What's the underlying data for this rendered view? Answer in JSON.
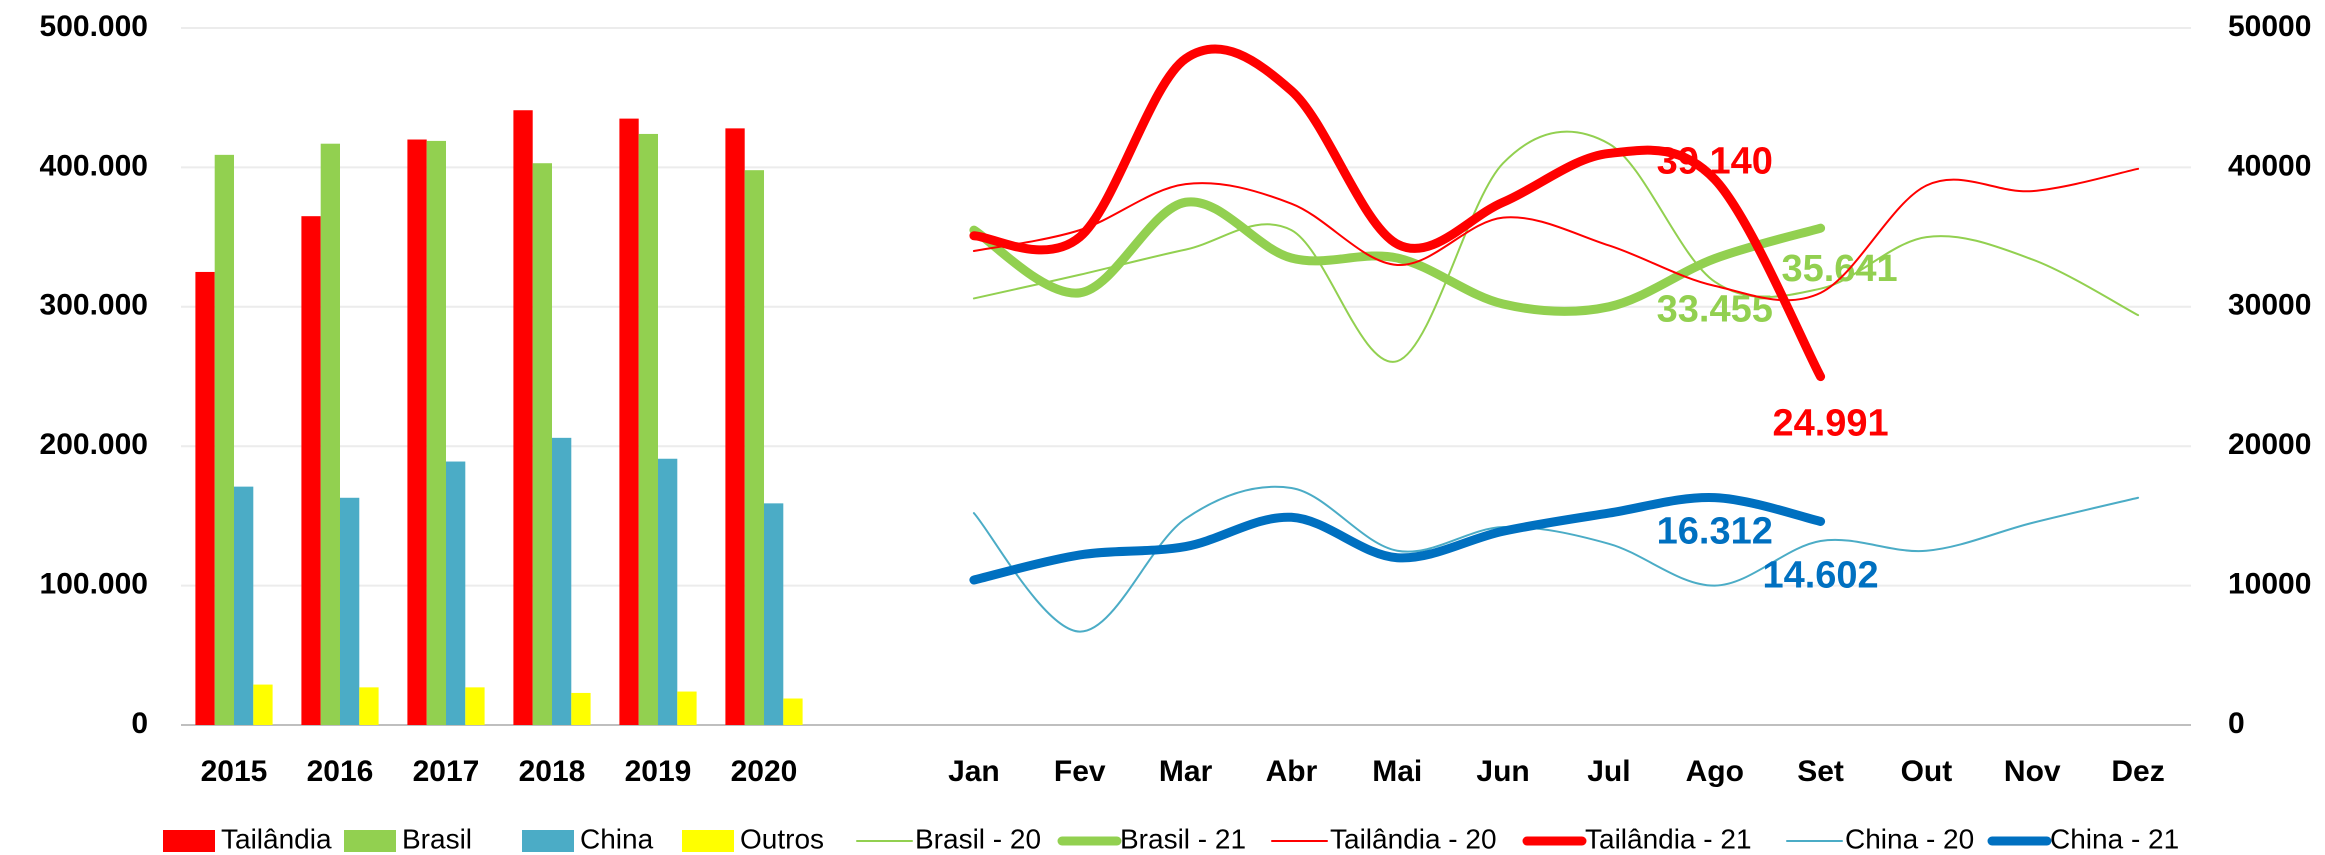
{
  "chart_data": [
    {
      "type": "bar",
      "categories": [
        "2015",
        "2016",
        "2017",
        "2018",
        "2019",
        "2020"
      ],
      "series": [
        {
          "name": "Tailândia",
          "color": "#ff0000",
          "values": [
            325000,
            365000,
            420000,
            441000,
            435000,
            428000
          ]
        },
        {
          "name": "Brasil",
          "color": "#92d050",
          "values": [
            409000,
            417000,
            419000,
            403000,
            424000,
            398000
          ]
        },
        {
          "name": "China",
          "color": "#4bacc6",
          "values": [
            171000,
            163000,
            189000,
            206000,
            191000,
            159000
          ]
        },
        {
          "name": "Outros",
          "color": "#ffff00",
          "values": [
            29000,
            27000,
            27000,
            23000,
            24000,
            19000
          ]
        }
      ],
      "ylim": [
        0,
        500000
      ],
      "yticks": [
        0,
        {
          "value": 100000,
          "label": "100.000"
        },
        {
          "value": 200000,
          "label": "200.000"
        },
        {
          "value": 300000,
          "label": "300.000"
        },
        {
          "value": 400000,
          "label": "400.000"
        },
        {
          "value": 500000,
          "label": "500.000"
        }
      ],
      "grid": true
    },
    {
      "type": "line",
      "categories": [
        "Jan",
        "Fev",
        "Mar",
        "Abr",
        "Mai",
        "Jun",
        "Jul",
        "Ago",
        "Set",
        "Out",
        "Nov",
        "Dez"
      ],
      "series": [
        {
          "name": "Brasil - 20",
          "color": "#92d050",
          "axis": "y2",
          "values": [
            30600,
            32300,
            34100,
            35500,
            26100,
            40300,
            41700,
            31800,
            31300,
            35000,
            33400,
            29400
          ]
        },
        {
          "name": "Brasil - 21",
          "color": "#92d050",
          "axis": "y2",
          "values": [
            35500,
            31000,
            37500,
            33500,
            33500,
            30200,
            30000,
            33455,
            35641,
            null,
            null,
            null
          ],
          "value_labels": [
            null,
            null,
            null,
            null,
            null,
            null,
            null,
            "33.455",
            "35.641",
            null,
            null,
            null
          ]
        },
        {
          "name": "Tailândia - 20",
          "color": "#ff0000",
          "axis": "y2",
          "values": [
            34000,
            35500,
            38800,
            37400,
            33000,
            36400,
            34400,
            31500,
            31000,
            38700,
            38300,
            39900
          ]
        },
        {
          "name": "Tailândia - 21",
          "color": "#ff0000",
          "axis": "y2",
          "values": [
            35100,
            35000,
            47800,
            45500,
            34500,
            37500,
            41000,
            39140,
            24991,
            null,
            null,
            null
          ],
          "value_labels": [
            null,
            null,
            null,
            null,
            null,
            null,
            null,
            "39.140",
            "24.991",
            null,
            null,
            null
          ]
        },
        {
          "name": "China - 20",
          "color": "#4bacc6",
          "axis": "y2",
          "values": [
            15200,
            6700,
            14800,
            17000,
            12500,
            14200,
            13000,
            10000,
            13200,
            12500,
            14500,
            16300
          ]
        },
        {
          "name": "China - 21",
          "color": "#0070c0",
          "axis": "y2",
          "values": [
            10400,
            12200,
            12800,
            14900,
            12000,
            13900,
            15200,
            16312,
            14602,
            null,
            null,
            null
          ],
          "value_labels": [
            null,
            null,
            null,
            null,
            null,
            null,
            null,
            "16.312",
            "14.602",
            null,
            null,
            null
          ]
        }
      ],
      "y2lim": [
        0,
        50000
      ],
      "y2ticks": [
        0,
        10000,
        20000,
        30000,
        40000,
        50000
      ]
    }
  ]
}
